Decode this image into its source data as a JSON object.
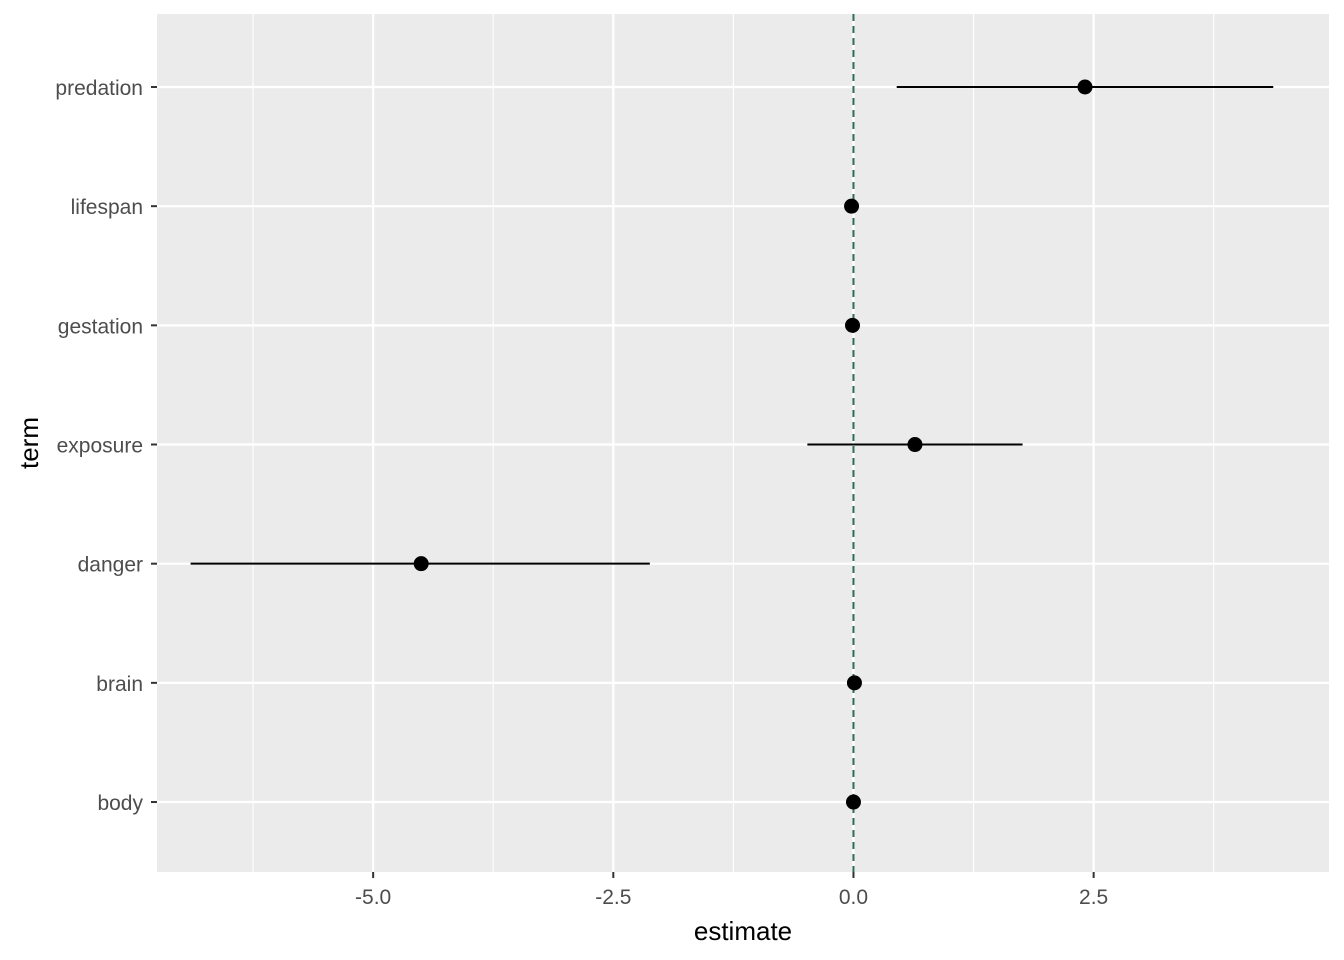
{
  "chart_data": {
    "type": "dot-whisker",
    "xlabel": "estimate",
    "ylabel": "term",
    "xlim": [
      -7.25,
      4.95
    ],
    "x_ticks": [
      {
        "value": -5.0,
        "label": "-5.0"
      },
      {
        "value": -2.5,
        "label": "-2.5"
      },
      {
        "value": 0.0,
        "label": "0.0"
      },
      {
        "value": 2.5,
        "label": "2.5"
      }
    ],
    "x_minor_ticks": [
      -6.25,
      -3.75,
      -1.25,
      1.25,
      3.75
    ],
    "reference_line": {
      "x": 0,
      "style": "dashed",
      "color": "#2e6b5a"
    },
    "terms": [
      {
        "term": "predation",
        "estimate": 2.41,
        "low": 0.45,
        "high": 4.37
      },
      {
        "term": "lifespan",
        "estimate": -0.02,
        "low": -0.02,
        "high": -0.02
      },
      {
        "term": "gestation",
        "estimate": -0.01,
        "low": -0.01,
        "high": -0.01
      },
      {
        "term": "exposure",
        "estimate": 0.64,
        "low": -0.48,
        "high": 1.76
      },
      {
        "term": "danger",
        "estimate": -4.5,
        "low": -6.9,
        "high": -2.12
      },
      {
        "term": "brain",
        "estimate": 0.01,
        "low": 0.01,
        "high": 0.01
      },
      {
        "term": "body",
        "estimate": 0.0,
        "low": 0.0,
        "high": 0.0
      }
    ],
    "grid": true,
    "colors": {
      "panel_background": "#ebebeb",
      "grid": "#ffffff",
      "point": "#000000",
      "interval": "#000000",
      "tick_text": "#4d4d4d"
    }
  }
}
